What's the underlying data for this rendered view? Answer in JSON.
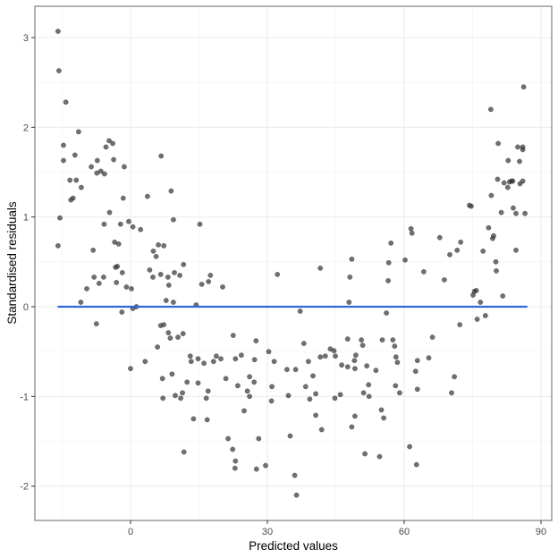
{
  "chart_data": {
    "type": "scatter",
    "title": "",
    "xlabel": "Predicted values",
    "ylabel": "Standardised residuals",
    "xlim": [
      -21,
      92
    ],
    "ylim": [
      -2.37,
      3.35
    ],
    "x_ticks": [
      0,
      30,
      60,
      90
    ],
    "x_tick_labels": [
      "0",
      "30",
      "60",
      "90"
    ],
    "y_ticks": [
      -2,
      -1,
      0,
      1,
      2,
      3
    ],
    "y_tick_labels": [
      "-2",
      "-1",
      "0",
      "1",
      "2",
      "3"
    ],
    "grid": true,
    "legend": null,
    "point_color": "#333333",
    "point_alpha": 0.7,
    "reference_line": {
      "y": 0,
      "x_start": -16,
      "x_end": 87,
      "color": "#3366dd"
    },
    "series": [
      {
        "name": "residuals",
        "points": [
          [
            -15.9,
            3.07
          ],
          [
            -15.7,
            2.63
          ],
          [
            -14.2,
            2.28
          ],
          [
            -14.7,
            1.8
          ],
          [
            -14.7,
            1.63
          ],
          [
            -13.3,
            1.41
          ],
          [
            -11.4,
            1.95
          ],
          [
            -10.8,
            1.33
          ],
          [
            -11.9,
            1.41
          ],
          [
            -12.6,
            1.21
          ],
          [
            -12.2,
            1.69
          ],
          [
            -8.6,
            1.56
          ],
          [
            -7.3,
            1.63
          ],
          [
            -7.4,
            1.49
          ],
          [
            -6.5,
            1.51
          ],
          [
            -5.7,
            1.48
          ],
          [
            -4.7,
            1.85
          ],
          [
            -5.4,
            1.78
          ],
          [
            -3.9,
            1.82
          ],
          [
            -3.7,
            1.64
          ],
          [
            -1.4,
            1.56
          ],
          [
            -15.5,
            0.99
          ],
          [
            -15.9,
            0.68
          ],
          [
            -13.1,
            1.19
          ],
          [
            -8.2,
            0.63
          ],
          [
            -4.6,
            1.05
          ],
          [
            -5.8,
            0.92
          ],
          [
            -3.5,
            0.72
          ],
          [
            -2.6,
            0.7
          ],
          [
            -2.2,
            0.92
          ],
          [
            -1.6,
            1.21
          ],
          [
            0.5,
            0.89
          ],
          [
            -0.4,
            0.95
          ],
          [
            2.2,
            0.86
          ],
          [
            3.7,
            1.23
          ],
          [
            6.7,
            1.68
          ],
          [
            8.9,
            1.29
          ],
          [
            9.4,
            0.97
          ],
          [
            -9.6,
            0.2
          ],
          [
            -8.0,
            0.33
          ],
          [
            -6.9,
            0.26
          ],
          [
            -5.9,
            0.33
          ],
          [
            -3.3,
            0.44
          ],
          [
            -2.9,
            0.45
          ],
          [
            -1.8,
            0.38
          ],
          [
            -3.1,
            0.27
          ],
          [
            -0.9,
            0.22
          ],
          [
            0.2,
            0.2
          ],
          [
            -10.9,
            0.05
          ],
          [
            -7.5,
            -0.19
          ],
          [
            -1.9,
            -0.06
          ],
          [
            0.5,
            -0.02
          ],
          [
            1.3,
            0.0
          ],
          [
            4.2,
            0.41
          ],
          [
            5.0,
            0.62
          ],
          [
            5.6,
            0.56
          ],
          [
            6.1,
            0.69
          ],
          [
            7.3,
            0.68
          ],
          [
            4.9,
            0.33
          ],
          [
            6.6,
            0.36
          ],
          [
            8.2,
            0.33
          ],
          [
            8.4,
            0.24
          ],
          [
            9.6,
            0.38
          ],
          [
            10.8,
            0.35
          ],
          [
            11.6,
            0.47
          ],
          [
            7.8,
            0.07
          ],
          [
            9.4,
            0.05
          ],
          [
            15.2,
            0.92
          ],
          [
            14.4,
            0.02
          ],
          [
            15.6,
            0.25
          ],
          [
            17.5,
            0.35
          ],
          [
            17.1,
            0.28
          ],
          [
            0.0,
            -0.69
          ],
          [
            3.2,
            -0.61
          ],
          [
            5.9,
            -0.45
          ],
          [
            6.6,
            -0.21
          ],
          [
            7.3,
            -0.2
          ],
          [
            8.3,
            -0.29
          ],
          [
            8.7,
            -0.35
          ],
          [
            10.4,
            -0.34
          ],
          [
            11.5,
            -0.3
          ],
          [
            7.0,
            -0.8
          ],
          [
            7.1,
            -1.02
          ],
          [
            9.1,
            -0.75
          ],
          [
            9.8,
            -0.99
          ],
          [
            11.0,
            -1.02
          ],
          [
            11.4,
            -0.96
          ],
          [
            12.4,
            -0.84
          ],
          [
            11.7,
            -1.62
          ],
          [
            13.1,
            -0.55
          ],
          [
            13.3,
            -0.61
          ],
          [
            13.8,
            -1.25
          ],
          [
            14.8,
            -0.58
          ],
          [
            14.8,
            -0.85
          ],
          [
            16.1,
            -0.63
          ],
          [
            16.6,
            -1.02
          ],
          [
            16.8,
            -1.26
          ],
          [
            17.0,
            -0.94
          ],
          [
            18.8,
            -0.55
          ],
          [
            18.2,
            -0.61
          ],
          [
            19.8,
            -0.58
          ],
          [
            20.2,
            0.22
          ],
          [
            20.9,
            -0.8
          ],
          [
            21.4,
            -1.47
          ],
          [
            22.5,
            -0.32
          ],
          [
            23.0,
            -0.58
          ],
          [
            23.5,
            -0.88
          ],
          [
            22.4,
            -1.59
          ],
          [
            23.0,
            -1.72
          ],
          [
            24.3,
            -0.54
          ],
          [
            26.1,
            -0.78
          ],
          [
            27.1,
            -0.84
          ],
          [
            22.9,
            -1.8
          ],
          [
            25.6,
            -0.94
          ],
          [
            26.1,
            -1.0
          ],
          [
            24.9,
            -1.16
          ],
          [
            27.2,
            -0.59
          ],
          [
            27.5,
            -0.38
          ],
          [
            28.1,
            -1.47
          ],
          [
            27.6,
            -1.81
          ],
          [
            29.6,
            -1.77
          ],
          [
            30.3,
            -0.5
          ],
          [
            31.0,
            -0.89
          ],
          [
            30.9,
            -1.05
          ],
          [
            32.2,
            0.36
          ],
          [
            31.5,
            -0.61
          ],
          [
            34.3,
            -0.7
          ],
          [
            34.6,
            -0.99
          ],
          [
            35.0,
            -1.44
          ],
          [
            36.2,
            -0.7
          ],
          [
            36.0,
            -1.88
          ],
          [
            38.0,
            -0.41
          ],
          [
            38.4,
            -0.89
          ],
          [
            37.2,
            -0.05
          ],
          [
            36.4,
            -2.1
          ],
          [
            39.3,
            -1.03
          ],
          [
            39.0,
            -0.61
          ],
          [
            40.6,
            -1.21
          ],
          [
            40.0,
            -0.77
          ],
          [
            40.6,
            -0.97
          ],
          [
            41.6,
            0.43
          ],
          [
            41.6,
            -0.56
          ],
          [
            42.7,
            -0.55
          ],
          [
            41.9,
            -1.37
          ],
          [
            43.8,
            -0.47
          ],
          [
            44.6,
            -0.49
          ],
          [
            44.9,
            -0.55
          ],
          [
            46.3,
            -0.65
          ],
          [
            44.8,
            -1.02
          ],
          [
            46.0,
            -0.98
          ],
          [
            47.6,
            -0.36
          ],
          [
            47.9,
            0.05
          ],
          [
            47.6,
            -0.67
          ],
          [
            48.1,
            0.33
          ],
          [
            48.5,
            0.53
          ],
          [
            49.1,
            -0.6
          ],
          [
            49.2,
            -0.69
          ],
          [
            49.4,
            -0.54
          ],
          [
            50.9,
            -0.43
          ],
          [
            50.6,
            -0.37
          ],
          [
            51.1,
            -0.96
          ],
          [
            52.3,
            -1.0
          ],
          [
            51.4,
            -1.64
          ],
          [
            51.8,
            -0.66
          ],
          [
            52.2,
            -0.87
          ],
          [
            53.8,
            -0.71
          ],
          [
            48.5,
            -1.34
          ],
          [
            49.2,
            -1.22
          ],
          [
            54.6,
            -1.67
          ],
          [
            55.5,
            -1.24
          ],
          [
            55.0,
            -1.15
          ],
          [
            56.1,
            -0.07
          ],
          [
            55.2,
            -0.37
          ],
          [
            56.6,
            0.49
          ],
          [
            57.5,
            -0.37
          ],
          [
            57.9,
            -0.44
          ],
          [
            58.5,
            -0.62
          ],
          [
            58.2,
            -0.56
          ],
          [
            56.5,
            0.29
          ],
          [
            57.1,
            0.71
          ],
          [
            58.1,
            -0.88
          ],
          [
            59.0,
            -0.96
          ],
          [
            60.2,
            0.52
          ],
          [
            61.7,
            0.82
          ],
          [
            61.5,
            0.87
          ],
          [
            62.5,
            -0.72
          ],
          [
            62.9,
            -0.6
          ],
          [
            61.2,
            -1.56
          ],
          [
            62.9,
            -0.92
          ],
          [
            62.7,
            -1.76
          ],
          [
            64.3,
            0.39
          ],
          [
            65.4,
            -0.57
          ],
          [
            66.2,
            -0.34
          ],
          [
            67.8,
            0.77
          ],
          [
            68.8,
            0.3
          ],
          [
            70.0,
            0.58
          ],
          [
            70.4,
            -0.96
          ],
          [
            71.0,
            -0.78
          ],
          [
            71.6,
            0.63
          ],
          [
            72.4,
            0.72
          ],
          [
            72.2,
            -0.2
          ],
          [
            74.3,
            1.13
          ],
          [
            74.7,
            1.12
          ],
          [
            75.4,
            0.17
          ],
          [
            76.0,
            -0.14
          ],
          [
            76.7,
            0.05
          ],
          [
            77.3,
            0.62
          ],
          [
            78.5,
            0.88
          ],
          [
            79.1,
            1.24
          ],
          [
            79.4,
            0.76
          ],
          [
            79.6,
            0.79
          ],
          [
            80.1,
            0.5
          ],
          [
            80.5,
            1.42
          ],
          [
            81.3,
            1.05
          ],
          [
            81.9,
            1.38
          ],
          [
            82.7,
            1.33
          ],
          [
            83.9,
            1.1
          ],
          [
            84.5,
            1.04
          ],
          [
            85.3,
            1.62
          ],
          [
            86.0,
            1.78
          ],
          [
            86.0,
            1.75
          ],
          [
            86.5,
            1.04
          ],
          [
            85.4,
            1.37
          ],
          [
            86.0,
            1.4
          ],
          [
            86.2,
            2.45
          ],
          [
            79.0,
            2.2
          ],
          [
            80.6,
            1.82
          ],
          [
            82.8,
            1.63
          ],
          [
            83.1,
            1.39
          ],
          [
            83.5,
            1.4
          ],
          [
            83.8,
            1.4
          ],
          [
            84.9,
            1.78
          ],
          [
            75.8,
            0.18
          ],
          [
            81.6,
            0.12
          ],
          [
            77.8,
            -0.1
          ],
          [
            84.5,
            0.63
          ],
          [
            80.2,
            0.4
          ],
          [
            75.1,
            0.13
          ]
        ]
      }
    ]
  }
}
